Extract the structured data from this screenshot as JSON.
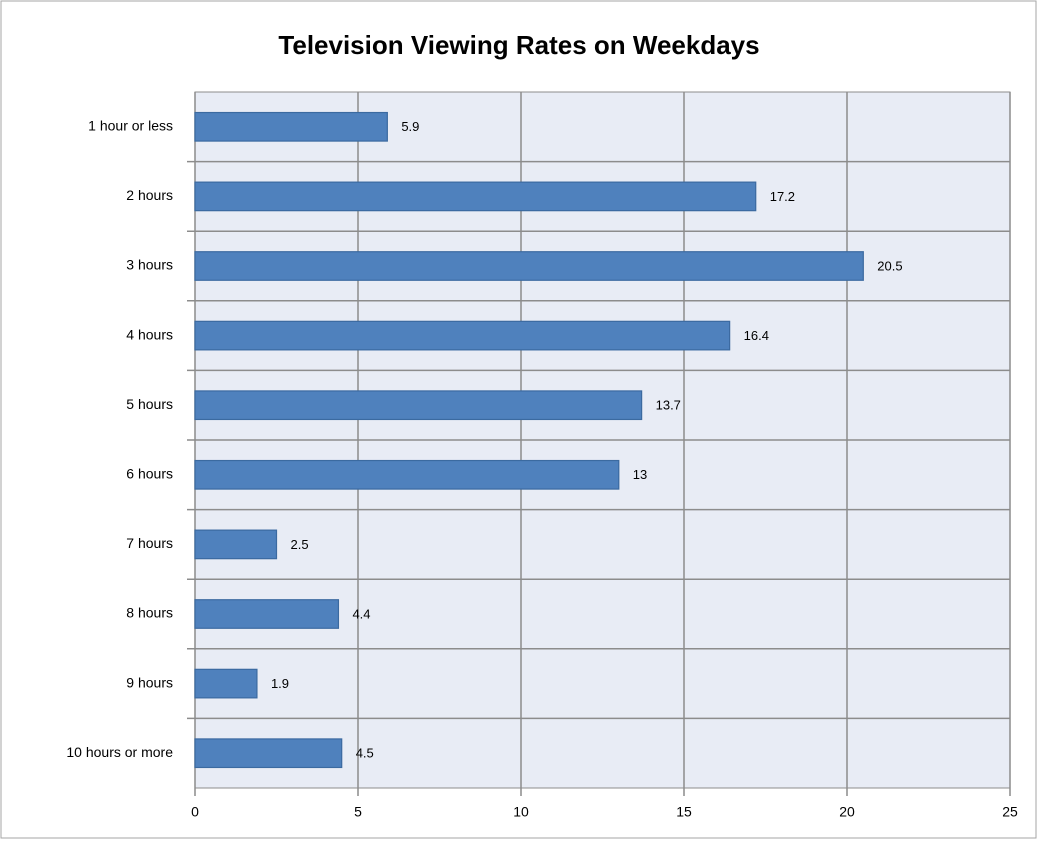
{
  "chart_data": {
    "type": "bar",
    "orientation": "horizontal",
    "title": "Television Viewing Rates on Weekdays",
    "categories": [
      "1 hour or less",
      "2 hours",
      "3 hours",
      "4 hours",
      "5 hours",
      "6 hours",
      "7 hours",
      "8 hours",
      "9 hours",
      "10 hours or more"
    ],
    "values": [
      5.9,
      17.2,
      20.5,
      16.4,
      13.7,
      13,
      2.5,
      4.4,
      1.9,
      4.5
    ],
    "color": "#4f81bd",
    "xlim": [
      0,
      25
    ],
    "xticks": [
      0,
      5,
      10,
      15,
      20,
      25
    ],
    "grid": true
  }
}
